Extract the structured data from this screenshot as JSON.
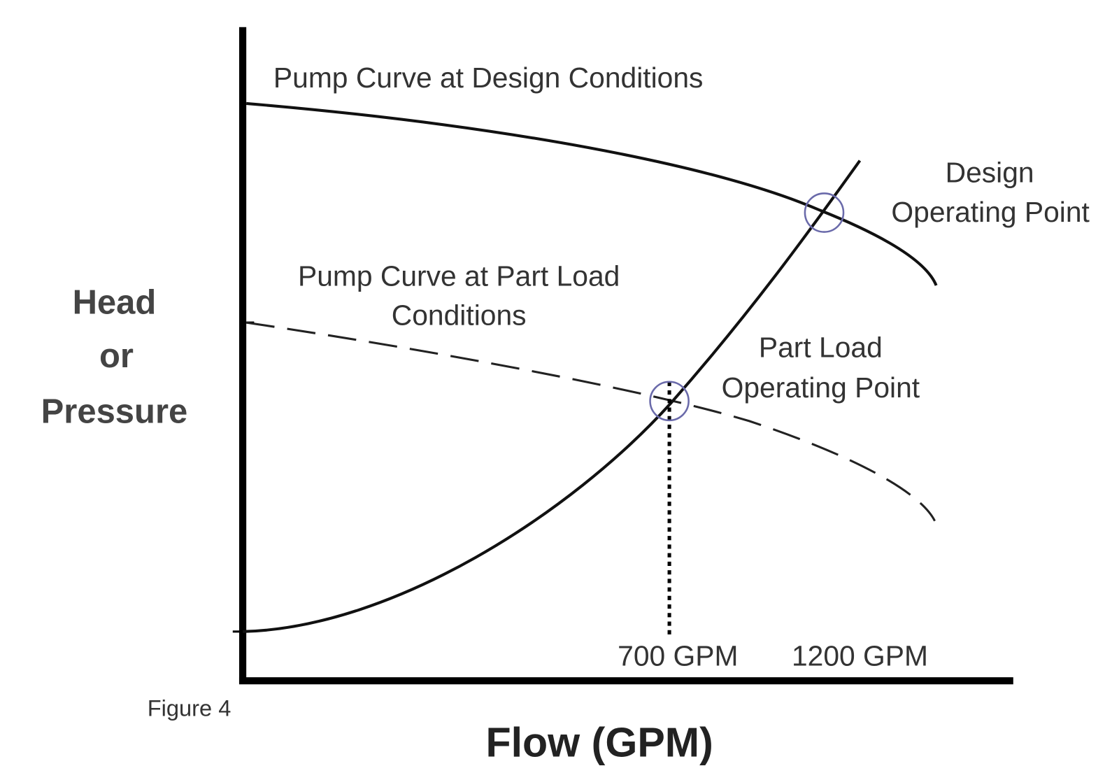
{
  "curves": {
    "design": {
      "label": "Pump Curve at Design Conditions"
    },
    "part_load": {
      "label": [
        "Pump Curve at Part Load",
        "Conditions"
      ]
    }
  },
  "points": {
    "design": {
      "label": [
        "Design",
        "Operating Point"
      ]
    },
    "part_load": {
      "label": [
        "Part Load",
        "Operating Point"
      ]
    }
  },
  "flow_markers": [
    "700 GPM",
    "1200 GPM"
  ],
  "y_axis_label": [
    "Head",
    "or",
    "Pressure"
  ],
  "x_axis_label": "Flow (GPM)",
  "figure_label": "Figure 4"
}
